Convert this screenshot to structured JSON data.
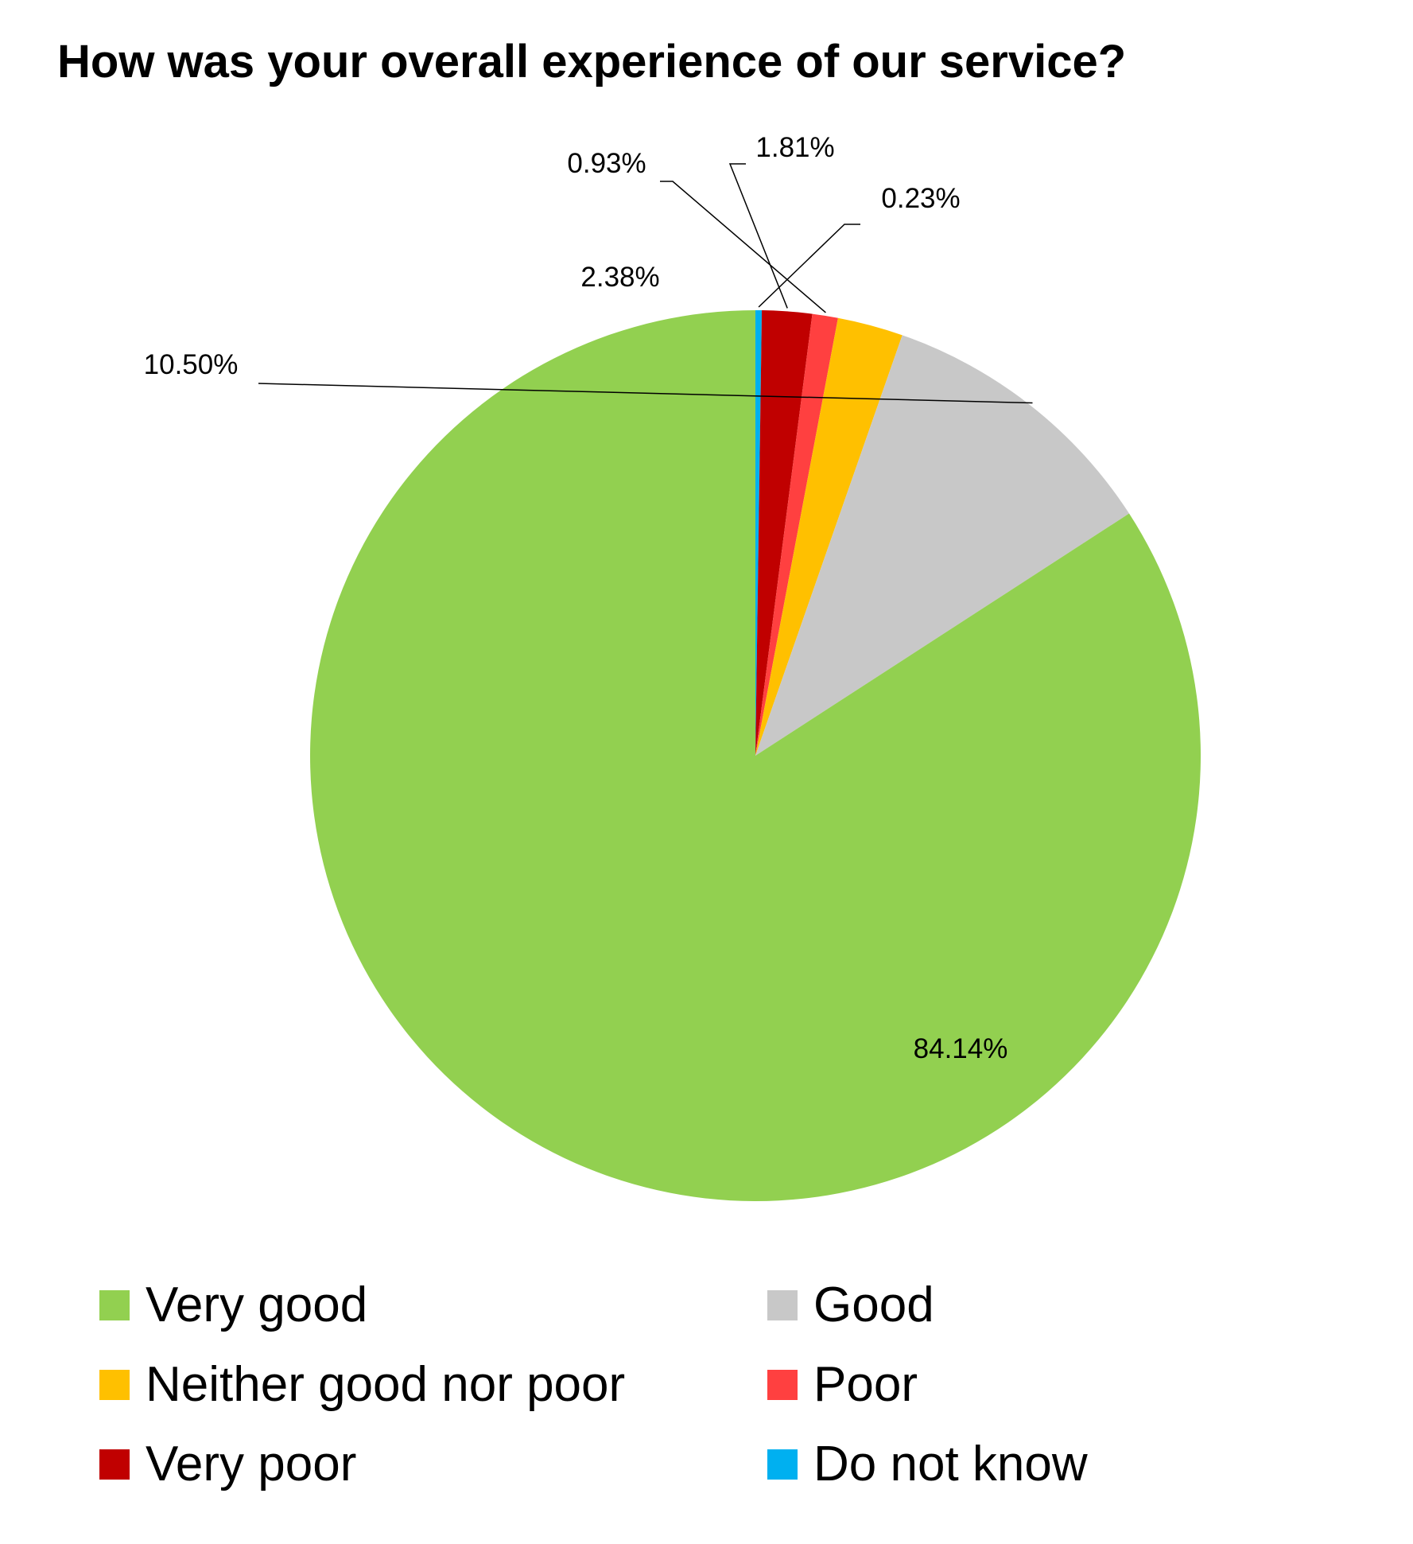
{
  "chart_data": {
    "type": "pie",
    "title": "How was your overall experience of our service?",
    "slices": [
      {
        "name": "Very good",
        "value": 84.14,
        "label": "84.14%",
        "color": "#92D050"
      },
      {
        "name": "Good",
        "value": 10.5,
        "label": "10.50%",
        "color": "#C8C8C8"
      },
      {
        "name": "Neither good nor poor",
        "value": 2.38,
        "label": "2.38%",
        "color": "#FFC000"
      },
      {
        "name": "Poor",
        "value": 0.93,
        "label": "0.93%",
        "color": "#FF4040"
      },
      {
        "name": "Very poor",
        "value": 1.81,
        "label": "1.81%",
        "color": "#C00000"
      },
      {
        "name": "Do not know",
        "value": 0.23,
        "label": "0.23%",
        "color": "#00B0F0"
      }
    ],
    "legend_position": "bottom"
  }
}
